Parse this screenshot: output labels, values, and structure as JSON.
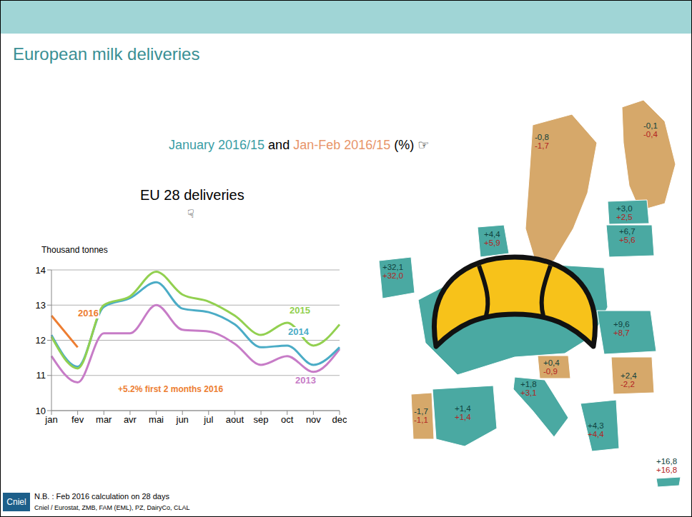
{
  "title": "European milk deliveries",
  "subtitle": [
    {
      "text": "January 2016/15",
      "color": "#3a9ea5"
    },
    {
      "text": "and",
      "color": "#000000"
    },
    {
      "text": "Jan-Feb 2016/15",
      "color": "#e8956a"
    },
    {
      "text": "(%) ☞",
      "color": "#000000"
    }
  ],
  "chart_data": {
    "type": "line",
    "title": "EU 28 deliveries",
    "y_label": "Thousand tonnes",
    "categories": [
      "jan",
      "fev",
      "mar",
      "avr",
      "mai",
      "jun",
      "jul",
      "aout",
      "sep",
      "oct",
      "nov",
      "dec"
    ],
    "series": [
      {
        "name": "2013",
        "color": "#c77cc7",
        "values": [
          11.55,
          10.8,
          12.2,
          12.2,
          13.0,
          12.3,
          12.25,
          11.9,
          11.3,
          11.55,
          11.1,
          11.75
        ]
      },
      {
        "name": "2014",
        "color": "#4bacc6",
        "values": [
          12.15,
          11.25,
          12.95,
          13.2,
          13.65,
          12.9,
          12.8,
          12.45,
          11.8,
          11.85,
          11.3,
          11.8
        ]
      },
      {
        "name": "2015",
        "color": "#92d050",
        "values": [
          12.1,
          11.2,
          13.0,
          13.25,
          13.95,
          13.3,
          13.1,
          12.7,
          12.15,
          12.5,
          11.85,
          12.45
        ]
      },
      {
        "name": "2016",
        "color": "#ed7d31",
        "values": [
          12.7,
          11.8,
          null,
          null,
          null,
          null,
          null,
          null,
          null,
          null,
          null,
          null
        ]
      }
    ],
    "ylim": [
      10,
      14
    ],
    "yticks": [
      10,
      11,
      12,
      13,
      14
    ],
    "grid": true,
    "annotations": [
      {
        "text": "☟",
        "color": "#000000"
      },
      {
        "text": "+5.2% first 2 months 2016",
        "color": "#ed7d31"
      }
    ]
  },
  "map": {
    "regions": [
      {
        "jan": "-0,1",
        "janfeb": "-0,4",
        "color": "#d6a86a"
      },
      {
        "jan": "-0,8",
        "janfeb": "-1,7",
        "color": "#d6a86a"
      },
      {
        "jan": "+3,0",
        "janfeb": "+2,5",
        "color": "#4aa9a2"
      },
      {
        "jan": "+6,7",
        "janfeb": "+5,6",
        "color": "#4aa9a2"
      },
      {
        "jan": "+4,4",
        "janfeb": "+5,9",
        "color": "#4aa9a2"
      },
      {
        "jan": "+32,1",
        "janfeb": "+32,0",
        "color": "#4aa9a2"
      },
      {
        "jan": "+9,6",
        "janfeb": "+8,7",
        "color": "#4aa9a2"
      },
      {
        "jan": "+0,4",
        "janfeb": "-0,9",
        "color": "#d6a86a"
      },
      {
        "jan": "+2,4",
        "janfeb": "-2,2",
        "color": "#d6a86a"
      },
      {
        "jan": "+1,8",
        "janfeb": "+3,1",
        "color": "#4aa9a2"
      },
      {
        "jan": "+1,4",
        "janfeb": "+1,4",
        "color": "#4aa9a2"
      },
      {
        "jan": "-1,7",
        "janfeb": "-1,1",
        "color": "#d6a86a"
      },
      {
        "jan": "+4,3",
        "janfeb": "+4,4",
        "color": "#4aa9a2"
      },
      {
        "jan": "+16,8",
        "janfeb": "+16,8",
        "color": "#4aa9a2"
      }
    ]
  },
  "footnote": "N.B. : Feb 2016 calculation on 28 days",
  "source": "Cniel / Eurostat, ZMB, FAM (EML), PZ, DairyCo, CLAL",
  "logo": "Cniel"
}
